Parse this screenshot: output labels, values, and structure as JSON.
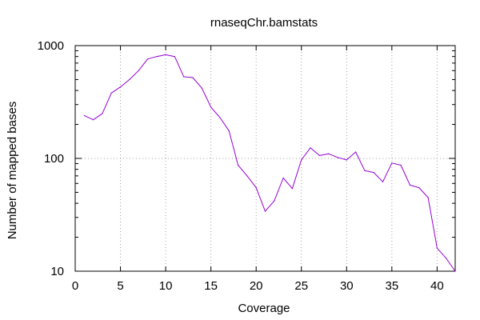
{
  "chart_data": {
    "type": "line",
    "title": "rnaseqChr.bamstats",
    "xlabel": "Coverage",
    "ylabel": "Number of mapped bases",
    "xlim": [
      0,
      42
    ],
    "ylim": [
      10,
      1000
    ],
    "yscale": "log",
    "grid": true,
    "grid_style": "dotted",
    "xticks": [
      0,
      5,
      10,
      15,
      20,
      25,
      30,
      35,
      40
    ],
    "xtick_labels": [
      "0",
      "5",
      "10",
      "15",
      "20",
      "25",
      "30",
      "35",
      "40"
    ],
    "yticks": [
      10,
      100,
      1000
    ],
    "ytick_labels": [
      "10",
      "100",
      "1000"
    ],
    "series": [
      {
        "color": "#9400d3",
        "x": [
          1,
          2,
          3,
          4,
          5,
          6,
          7,
          8,
          9,
          10,
          11,
          12,
          13,
          14,
          15,
          16,
          17,
          18,
          19,
          20,
          21,
          22,
          23,
          24,
          25,
          26,
          27,
          28,
          29,
          30,
          31,
          32,
          33,
          34,
          35,
          36,
          37,
          38,
          39,
          40,
          41,
          42
        ],
        "y": [
          240,
          220,
          250,
          380,
          430,
          500,
          600,
          760,
          800,
          830,
          800,
          530,
          520,
          420,
          285,
          230,
          175,
          87,
          70,
          55,
          34,
          42,
          67,
          54,
          97,
          124,
          106,
          110,
          102,
          97,
          114,
          78,
          75,
          62,
          91,
          87,
          58,
          55,
          45,
          16,
          13,
          10
        ]
      }
    ]
  }
}
